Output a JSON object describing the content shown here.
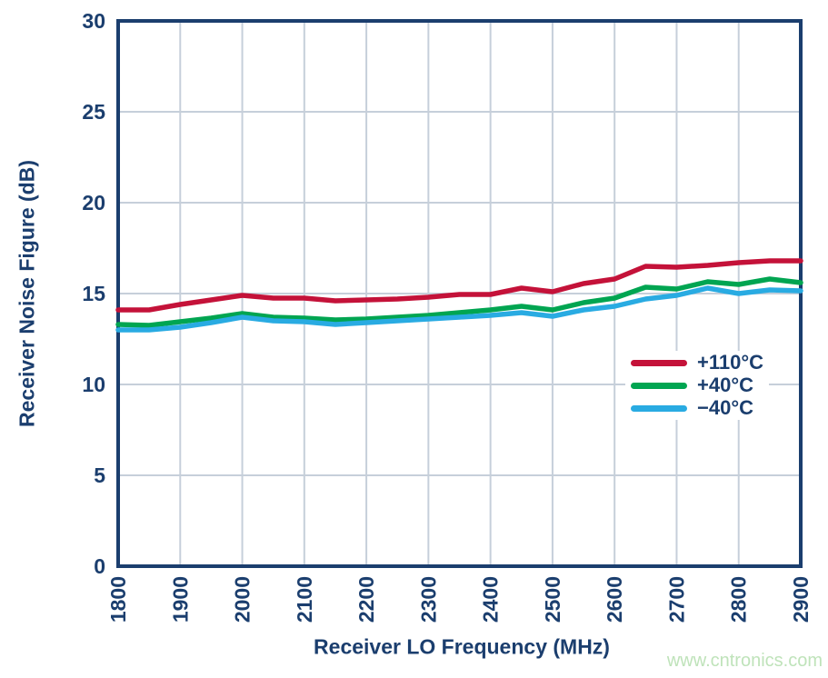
{
  "page": {
    "watermark": "www.cntronics.com"
  },
  "colors": {
    "axis": "#1b3e6e",
    "text": "#1b3e6e",
    "grid": "#c6cfda",
    "watermark": "#bfe3ba",
    "legend_background": "#ffffff"
  },
  "chart_data": {
    "type": "line",
    "title": "",
    "xlabel": "Receiver LO Frequency (MHz)",
    "ylabel": "Receiver Noise Figure (dB)",
    "xlim": [
      1800,
      2900
    ],
    "ylim": [
      0,
      30
    ],
    "x_ticks": [
      1800,
      1900,
      2000,
      2100,
      2200,
      2300,
      2400,
      2500,
      2600,
      2700,
      2800,
      2900
    ],
    "y_ticks": [
      0,
      5,
      10,
      15,
      20,
      25,
      30
    ],
    "grid": true,
    "legend_position": "right-middle",
    "x": [
      1800,
      1850,
      1900,
      1950,
      2000,
      2050,
      2100,
      2150,
      2200,
      2250,
      2300,
      2350,
      2400,
      2450,
      2500,
      2550,
      2600,
      2650,
      2700,
      2750,
      2800,
      2850,
      2900
    ],
    "series": [
      {
        "name": "+110°C",
        "color": "#c41239",
        "values": [
          14.1,
          14.1,
          14.4,
          14.65,
          14.9,
          14.75,
          14.75,
          14.6,
          14.65,
          14.7,
          14.8,
          14.95,
          14.95,
          15.3,
          15.1,
          15.55,
          15.8,
          16.5,
          16.45,
          16.55,
          16.7,
          16.8,
          16.8
        ]
      },
      {
        "name": "+40°C",
        "color": "#00a551",
        "values": [
          13.3,
          13.25,
          13.45,
          13.65,
          13.9,
          13.7,
          13.65,
          13.55,
          13.6,
          13.7,
          13.8,
          13.95,
          14.1,
          14.3,
          14.1,
          14.5,
          14.75,
          15.35,
          15.25,
          15.65,
          15.5,
          15.8,
          15.6
        ]
      },
      {
        "name": "−40°C",
        "color": "#29abe2",
        "values": [
          13.0,
          13.0,
          13.15,
          13.4,
          13.7,
          13.5,
          13.45,
          13.3,
          13.4,
          13.5,
          13.6,
          13.7,
          13.8,
          13.95,
          13.75,
          14.1,
          14.3,
          14.7,
          14.9,
          15.3,
          15.0,
          15.2,
          15.15
        ]
      }
    ]
  }
}
